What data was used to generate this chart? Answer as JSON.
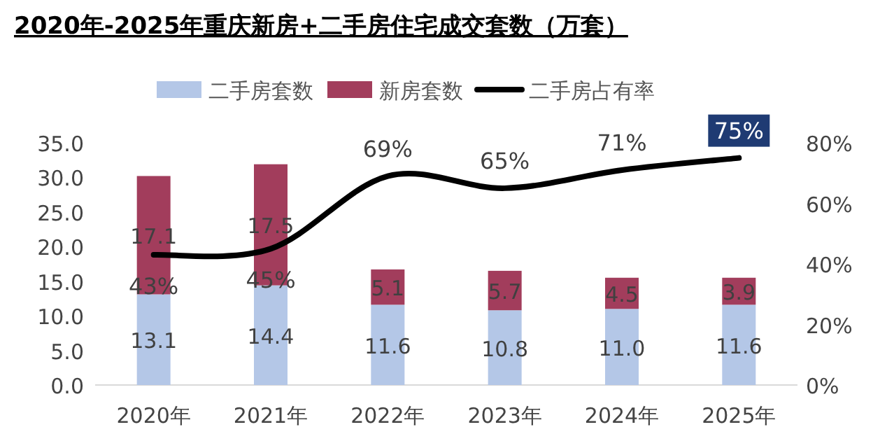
{
  "chart_data": {
    "type": "bar",
    "title": "2020年-2025年重庆新房+二手房住宅成交套数（万套）",
    "categories": [
      "2020年",
      "2021年",
      "2022年",
      "2023年",
      "2024年",
      "2025年"
    ],
    "stacked": true,
    "data_labels": true,
    "legend": "top",
    "grid": false,
    "ylim": [
      0,
      35
    ],
    "yticks": [
      {
        "value": 0,
        "label": "0.0"
      },
      {
        "value": 5,
        "label": "5.0"
      },
      {
        "value": 10,
        "label": "10.0"
      },
      {
        "value": 15,
        "label": "15.0"
      },
      {
        "value": 20,
        "label": "20.0"
      },
      {
        "value": 25,
        "label": "25.0"
      },
      {
        "value": 30,
        "label": "30.0"
      },
      {
        "value": 35,
        "label": "35.0"
      }
    ],
    "y2lim": [
      0,
      80
    ],
    "y2ticks": [
      {
        "value": 0,
        "label": "0%"
      },
      {
        "value": 20,
        "label": "20%"
      },
      {
        "value": 40,
        "label": "40%"
      },
      {
        "value": 60,
        "label": "60%"
      },
      {
        "value": 80,
        "label": "80%"
      }
    ],
    "series": [
      {
        "name": "二手房套数",
        "color": "#b4c7e7",
        "values": [
          13.1,
          14.4,
          11.6,
          10.8,
          11.0,
          11.6
        ],
        "value_labels": [
          "13.1",
          "14.4",
          "11.6",
          "10.8",
          "11.0",
          "11.6"
        ]
      },
      {
        "name": "新房套数",
        "color": "#a23d5c",
        "values": [
          17.1,
          17.5,
          5.1,
          5.7,
          4.5,
          3.9
        ]
      },
      {
        "name": "二手房占有率",
        "type": "line",
        "axis": "y2",
        "color": "#000000",
        "values": [
          43,
          45,
          69,
          65,
          71,
          75
        ],
        "value_labels": [
          "43%",
          "45%",
          "69%",
          "65%",
          "71%",
          "75%"
        ]
      }
    ]
  }
}
